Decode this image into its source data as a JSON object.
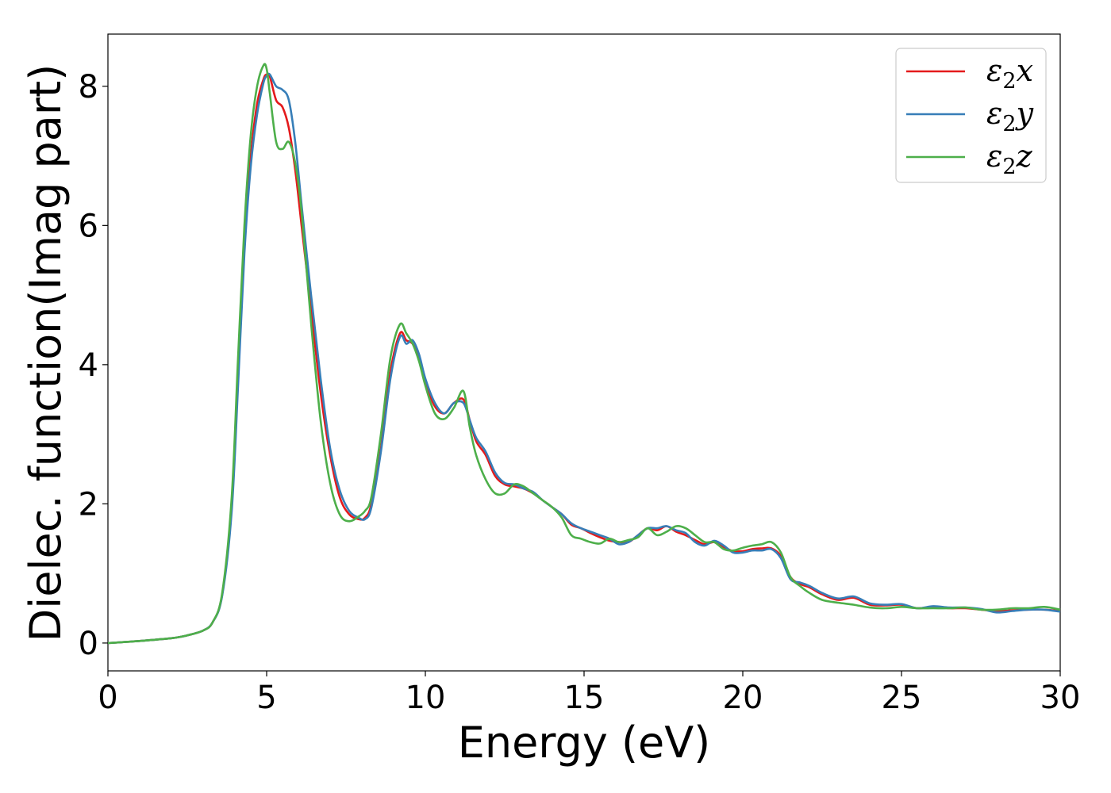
{
  "chart_data": {
    "type": "line",
    "xlabel": "Energy (eV)",
    "ylabel": "Dielec. function(Imag part)",
    "xlim": [
      0,
      30
    ],
    "ylim": [
      -0.4,
      8.75
    ],
    "xticks": [
      0,
      5,
      10,
      15,
      20,
      25,
      30
    ],
    "yticks": [
      0,
      2,
      4,
      6,
      8
    ],
    "grid": false,
    "legend_position": "top-right",
    "series": [
      {
        "name": "ε₂x",
        "legend_base": "ε",
        "legend_sub": "2",
        "legend_tail": "x",
        "color": "#e41a1c",
        "x": [
          0,
          1,
          2,
          2.5,
          3,
          3.3,
          3.6,
          3.9,
          4.1,
          4.3,
          4.5,
          4.7,
          4.9,
          5.0,
          5.1,
          5.3,
          5.5,
          5.7,
          5.9,
          6.1,
          6.4,
          6.7,
          7.0,
          7.3,
          7.6,
          7.9,
          8.1,
          8.3,
          8.6,
          8.9,
          9.2,
          9.4,
          9.6,
          9.8,
          10.0,
          10.3,
          10.6,
          10.9,
          11.2,
          11.4,
          11.6,
          11.9,
          12.2,
          12.5,
          12.8,
          13.1,
          13.4,
          13.7,
          14.0,
          14.3,
          14.6,
          14.9,
          15.2,
          15.5,
          15.8,
          16.1,
          16.4,
          16.7,
          17.0,
          17.3,
          17.6,
          17.9,
          18.2,
          18.5,
          18.8,
          19.1,
          19.4,
          19.7,
          20.0,
          20.3,
          20.6,
          20.9,
          21.2,
          21.5,
          21.8,
          22.1,
          22.5,
          23.0,
          23.5,
          24.0,
          24.5,
          25.0,
          25.5,
          26.0,
          26.5,
          27.0,
          27.5,
          28.0,
          28.5,
          29.0,
          29.5,
          30.0
        ],
        "y": [
          0.0,
          0.03,
          0.07,
          0.11,
          0.18,
          0.3,
          0.7,
          2.0,
          3.9,
          5.8,
          7.0,
          7.75,
          8.1,
          8.17,
          8.14,
          7.8,
          7.7,
          7.4,
          6.8,
          6.0,
          4.8,
          3.6,
          2.7,
          2.1,
          1.85,
          1.78,
          1.8,
          2.0,
          2.8,
          3.9,
          4.45,
          4.35,
          4.3,
          4.1,
          3.75,
          3.4,
          3.3,
          3.45,
          3.5,
          3.2,
          2.9,
          2.7,
          2.4,
          2.28,
          2.25,
          2.22,
          2.15,
          2.05,
          1.95,
          1.85,
          1.7,
          1.65,
          1.58,
          1.52,
          1.47,
          1.45,
          1.45,
          1.55,
          1.65,
          1.62,
          1.68,
          1.6,
          1.55,
          1.48,
          1.42,
          1.45,
          1.38,
          1.32,
          1.32,
          1.35,
          1.36,
          1.36,
          1.25,
          0.95,
          0.85,
          0.8,
          0.7,
          0.62,
          0.65,
          0.55,
          0.54,
          0.55,
          0.5,
          0.52,
          0.5,
          0.5,
          0.48,
          0.46,
          0.47,
          0.48,
          0.48,
          0.46
        ]
      },
      {
        "name": "ε₂y",
        "legend_base": "ε",
        "legend_sub": "2",
        "legend_tail": "y",
        "color": "#377eb8",
        "x": [
          0,
          1,
          2,
          2.5,
          3,
          3.3,
          3.6,
          3.9,
          4.1,
          4.3,
          4.5,
          4.7,
          4.9,
          5.0,
          5.1,
          5.3,
          5.5,
          5.7,
          5.9,
          6.1,
          6.4,
          6.7,
          7.0,
          7.3,
          7.6,
          7.9,
          8.1,
          8.3,
          8.6,
          8.9,
          9.2,
          9.4,
          9.6,
          9.8,
          10.0,
          10.3,
          10.6,
          10.9,
          11.2,
          11.4,
          11.6,
          11.9,
          12.2,
          12.5,
          12.8,
          13.1,
          13.4,
          13.7,
          14.0,
          14.3,
          14.6,
          14.9,
          15.2,
          15.5,
          15.8,
          16.1,
          16.4,
          16.7,
          17.0,
          17.3,
          17.6,
          17.9,
          18.2,
          18.5,
          18.8,
          19.1,
          19.4,
          19.7,
          20.0,
          20.3,
          20.6,
          20.9,
          21.2,
          21.5,
          21.8,
          22.1,
          22.5,
          23.0,
          23.5,
          24.0,
          24.5,
          25.0,
          25.5,
          26.0,
          26.5,
          27.0,
          27.5,
          28.0,
          28.5,
          29.0,
          29.5,
          30.0
        ],
        "y": [
          0.0,
          0.03,
          0.07,
          0.11,
          0.18,
          0.3,
          0.68,
          1.9,
          3.7,
          5.6,
          6.85,
          7.6,
          8.05,
          8.15,
          8.17,
          8.0,
          7.95,
          7.8,
          7.2,
          6.3,
          5.0,
          3.8,
          2.8,
          2.2,
          1.9,
          1.8,
          1.78,
          1.95,
          2.75,
          3.8,
          4.4,
          4.3,
          4.35,
          4.15,
          3.8,
          3.45,
          3.3,
          3.45,
          3.45,
          3.2,
          2.95,
          2.75,
          2.45,
          2.3,
          2.28,
          2.22,
          2.17,
          2.05,
          1.95,
          1.85,
          1.72,
          1.65,
          1.6,
          1.55,
          1.5,
          1.42,
          1.45,
          1.55,
          1.65,
          1.65,
          1.68,
          1.62,
          1.58,
          1.45,
          1.4,
          1.47,
          1.4,
          1.3,
          1.3,
          1.33,
          1.33,
          1.35,
          1.22,
          0.92,
          0.87,
          0.82,
          0.72,
          0.64,
          0.67,
          0.57,
          0.55,
          0.56,
          0.5,
          0.53,
          0.51,
          0.51,
          0.49,
          0.44,
          0.46,
          0.48,
          0.48,
          0.45
        ]
      },
      {
        "name": "ε₂z",
        "legend_base": "ε",
        "legend_sub": "2",
        "legend_tail": "z",
        "color": "#4daf4a",
        "x": [
          0,
          1,
          2,
          2.5,
          3,
          3.3,
          3.6,
          3.9,
          4.1,
          4.3,
          4.5,
          4.7,
          4.9,
          5.0,
          5.1,
          5.3,
          5.5,
          5.7,
          5.9,
          6.1,
          6.4,
          6.7,
          7.0,
          7.3,
          7.6,
          7.9,
          8.1,
          8.3,
          8.6,
          8.9,
          9.2,
          9.4,
          9.6,
          9.8,
          10.0,
          10.3,
          10.6,
          10.9,
          11.2,
          11.4,
          11.6,
          11.9,
          12.2,
          12.5,
          12.8,
          13.1,
          13.4,
          13.7,
          14.0,
          14.3,
          14.6,
          14.9,
          15.2,
          15.5,
          15.8,
          16.1,
          16.4,
          16.7,
          17.0,
          17.3,
          17.6,
          17.9,
          18.2,
          18.5,
          18.8,
          19.1,
          19.4,
          19.7,
          20.0,
          20.3,
          20.6,
          20.9,
          21.2,
          21.5,
          21.8,
          22.1,
          22.5,
          23.0,
          23.5,
          24.0,
          24.5,
          25.0,
          25.5,
          26.0,
          26.5,
          27.0,
          27.5,
          28.0,
          28.5,
          29.0,
          29.5,
          30.0
        ],
        "y": [
          0.0,
          0.03,
          0.07,
          0.11,
          0.18,
          0.3,
          0.72,
          2.1,
          4.1,
          6.0,
          7.3,
          8.0,
          8.3,
          8.25,
          7.9,
          7.2,
          7.1,
          7.2,
          6.9,
          6.2,
          4.6,
          3.2,
          2.3,
          1.85,
          1.75,
          1.82,
          1.9,
          2.1,
          3.0,
          4.1,
          4.58,
          4.45,
          4.3,
          4.05,
          3.7,
          3.3,
          3.22,
          3.38,
          3.62,
          3.1,
          2.7,
          2.35,
          2.15,
          2.15,
          2.28,
          2.25,
          2.15,
          2.05,
          1.95,
          1.8,
          1.55,
          1.5,
          1.45,
          1.43,
          1.5,
          1.45,
          1.48,
          1.52,
          1.65,
          1.55,
          1.6,
          1.68,
          1.65,
          1.55,
          1.45,
          1.45,
          1.35,
          1.33,
          1.37,
          1.4,
          1.42,
          1.45,
          1.3,
          0.95,
          0.82,
          0.72,
          0.62,
          0.58,
          0.55,
          0.51,
          0.5,
          0.52,
          0.5,
          0.5,
          0.5,
          0.51,
          0.48,
          0.48,
          0.5,
          0.5,
          0.52,
          0.48
        ]
      }
    ]
  }
}
